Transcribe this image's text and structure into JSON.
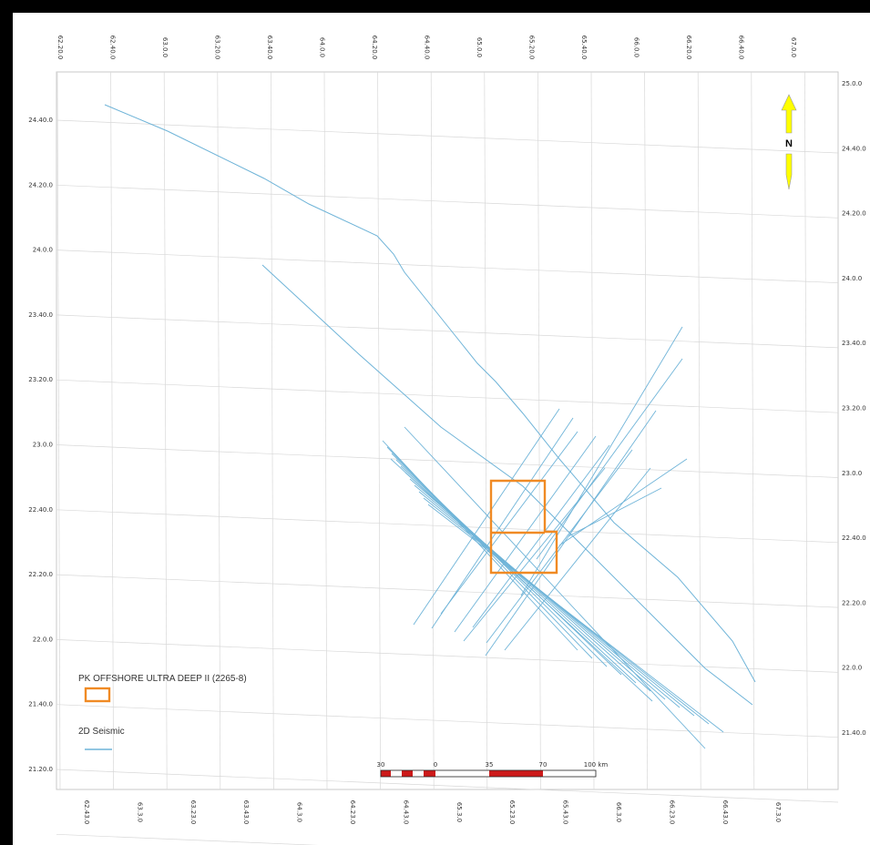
{
  "map": {
    "top_lon_ticks": [
      "62.20.0",
      "62.40.0",
      "63.0.0",
      "63.20.0",
      "63.40.0",
      "64.0.0",
      "64.20.0",
      "64.40.0",
      "65.0.0",
      "65.20.0",
      "65.40.0",
      "66.0.0",
      "66.20.0",
      "66.40.0",
      "67.0.0"
    ],
    "bottom_lon_ticks": [
      "62.43.0",
      "63.3.0",
      "63.23.0",
      "63.43.0",
      "64.3.0",
      "64.23.0",
      "64.43.0",
      "65.3.0",
      "65.23.0",
      "65.43.0",
      "66.3.0",
      "66.23.0",
      "66.43.0",
      "67.3.0"
    ],
    "left_lat_ticks": [
      "24.40.0",
      "24.20.0",
      "24.0.0",
      "23.40.0",
      "23.20.0",
      "23.0.0",
      "22.40.0",
      "22.20.0",
      "22.0.0",
      "21.40.0",
      "21.20.0"
    ],
    "right_lat_ticks": [
      "25.0.0",
      "24.40.0",
      "24.20.0",
      "24.0.0",
      "23.40.0",
      "23.20.0",
      "23.0.0",
      "22.40.0",
      "22.20.0",
      "22.0.0",
      "21.40.0"
    ],
    "grid_color": "#d8d8d8",
    "seismic_color": "#6fb4d8",
    "block_color": "#f08a24"
  },
  "legend": {
    "block_label": "PK OFFSHORE ULTRA DEEP II (2265-8)",
    "seismic_label": "2D Seismic"
  },
  "north_arrow": {
    "label": "N",
    "color": "#ffff00"
  },
  "scale_bar": {
    "labels": [
      "30",
      "0",
      "35",
      "70",
      "100 km"
    ],
    "colors": [
      "#cc1a1a",
      "#ffffff"
    ]
  }
}
